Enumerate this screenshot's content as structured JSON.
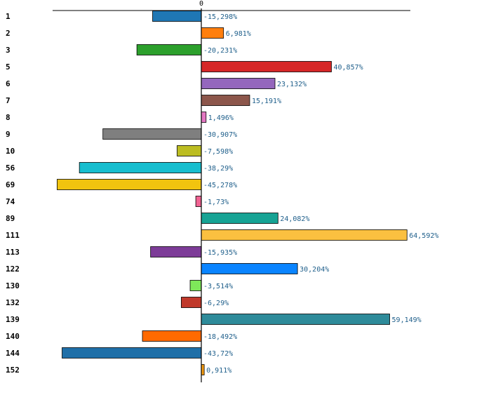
{
  "chart_data": {
    "type": "bar",
    "orientation": "horizontal",
    "title": "",
    "xlabel": "",
    "ylabel": "",
    "xlim": [
      -50,
      70
    ],
    "zero_tick_label": "0",
    "grid": false,
    "legend": "none",
    "categories": [
      "1",
      "2",
      "3",
      "5",
      "6",
      "7",
      "8",
      "9",
      "10",
      "56",
      "69",
      "74",
      "89",
      "111",
      "113",
      "122",
      "130",
      "132",
      "139",
      "140",
      "144",
      "152"
    ],
    "values": [
      -15.298,
      6.981,
      -20.231,
      40.857,
      23.132,
      15.191,
      1.496,
      -30.907,
      -7.598,
      -38.29,
      -45.278,
      -1.73,
      24.082,
      64.592,
      -15.935,
      30.204,
      -3.514,
      -6.29,
      59.149,
      -18.492,
      -43.72,
      0.911
    ],
    "value_labels": [
      "-15,298%",
      "6,981%",
      "-20,231%",
      "40,857%",
      "23,132%",
      "15,191%",
      "1,496%",
      "-30,907%",
      "-7,598%",
      "-38,29%",
      "-45,278%",
      "-1,73%",
      "24,082%",
      "64,592%",
      "-15,935%",
      "30,204%",
      "-3,514%",
      "-6,29%",
      "59,149%",
      "-18,492%",
      "-43,72%",
      "0,911%"
    ],
    "colors": [
      "#1f77b4",
      "#ff7f0e",
      "#2ca02c",
      "#d62728",
      "#9467bd",
      "#8c564b",
      "#e377c2",
      "#7f7f7f",
      "#bcbd22",
      "#17becf",
      "#f1c40f",
      "#f06292",
      "#16a394",
      "#fbc040",
      "#7d3c98",
      "#0a84ff",
      "#7ee85a",
      "#c0392b",
      "#2e8b9a",
      "#ff6a00",
      "#1f6fa8",
      "#f39c12"
    ]
  }
}
